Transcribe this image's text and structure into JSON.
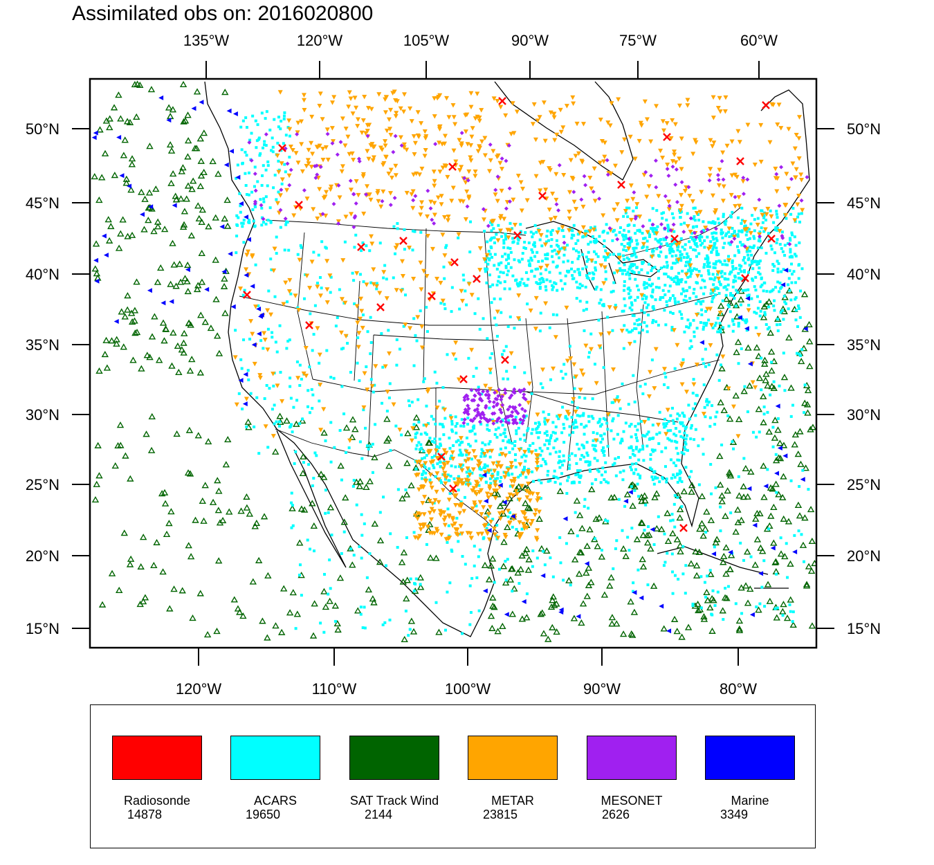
{
  "title": "Assimilated obs on: 2016020800",
  "map": {
    "top_ticks": [
      "135°W",
      "120°W",
      "105°W",
      "90°W",
      "75°W",
      "60°W"
    ],
    "bottom_ticks": [
      "120°W",
      "110°W",
      "100°W",
      "90°W",
      "80°W"
    ],
    "left_ticks": [
      "50°N",
      "45°N",
      "40°N",
      "35°N",
      "30°N",
      "25°N",
      "20°N",
      "15°N"
    ],
    "right_ticks": [
      "50°N",
      "45°N",
      "40°N",
      "35°N",
      "30°N",
      "25°N",
      "20°N",
      "15°N"
    ],
    "lat_range": [
      14,
      53
    ],
    "lon_range_bottom": [
      -128,
      -74
    ]
  },
  "legend": [
    {
      "name": "Radiosonde",
      "count": "14878",
      "color": "#ff0000",
      "marker": "x"
    },
    {
      "name": "ACARS",
      "count": "19650",
      "color": "#00ffff",
      "marker": "square"
    },
    {
      "name": "SAT Track Wind",
      "count": "2144",
      "color": "#006400",
      "marker": "triangle-up-hollow"
    },
    {
      "name": "METAR",
      "count": "23815",
      "color": "#ffa500",
      "marker": "triangle-down"
    },
    {
      "name": "MESONET",
      "count": "2626",
      "color": "#a020f0",
      "marker": "diamond"
    },
    {
      "name": "Marine",
      "count": "3349",
      "color": "#0000ff",
      "marker": "triangle-left"
    }
  ]
}
